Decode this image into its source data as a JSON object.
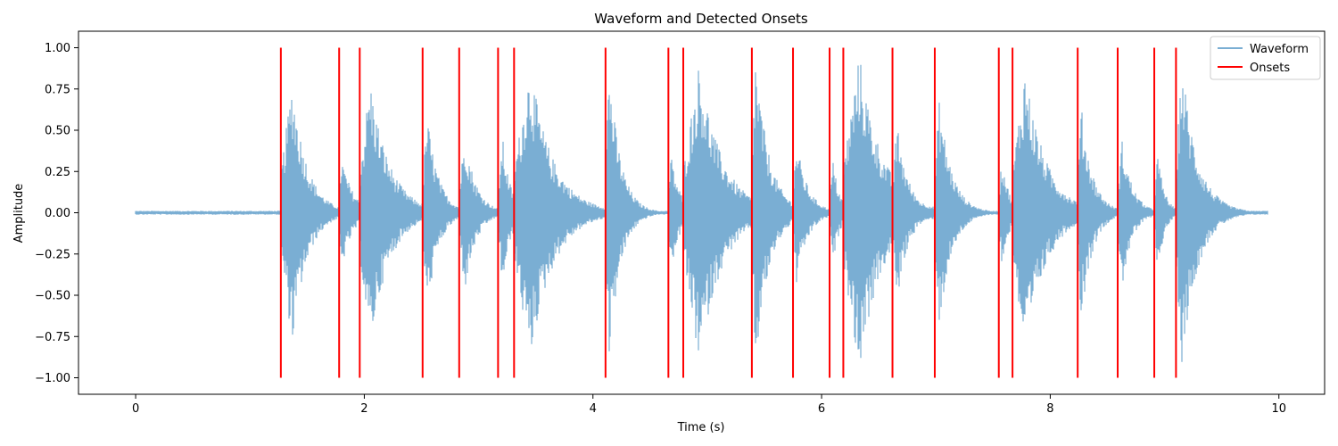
{
  "chart_data": {
    "type": "line",
    "title": "Waveform and Detected Onsets",
    "xlabel": "Time (s)",
    "ylabel": "Amplitude",
    "xlim": [
      -0.5,
      10.4
    ],
    "ylim": [
      -1.1,
      1.1
    ],
    "x_ticks": [
      0,
      2,
      4,
      6,
      8,
      10
    ],
    "x_tick_labels": [
      "0",
      "2",
      "4",
      "6",
      "8",
      "10"
    ],
    "y_ticks": [
      -1.0,
      -0.75,
      -0.5,
      -0.25,
      0.0,
      0.25,
      0.5,
      0.75,
      1.0
    ],
    "y_tick_labels": [
      "−1.00",
      "−0.75",
      "−0.50",
      "−0.25",
      "0.00",
      "0.25",
      "0.50",
      "0.75",
      "1.00"
    ],
    "grid": false,
    "legend_position": "top-right",
    "series": [
      {
        "name": "Waveform",
        "color": "#7aaed3",
        "duration": 9.9,
        "noise_amplitude": 0.012,
        "bursts": [
          {
            "start": 1.27,
            "peak_time": 1.37,
            "amplitude": 0.81,
            "decay": 0.13
          },
          {
            "start": 1.78,
            "peak_time": 1.8,
            "amplitude": 0.35,
            "decay": 0.1
          },
          {
            "start": 1.96,
            "peak_time": 2.05,
            "amplitude": 0.82,
            "decay": 0.17
          },
          {
            "start": 2.51,
            "peak_time": 2.55,
            "amplitude": 0.6,
            "decay": 0.1
          },
          {
            "start": 2.83,
            "peak_time": 2.88,
            "amplitude": 0.48,
            "decay": 0.1
          },
          {
            "start": 3.17,
            "peak_time": 3.21,
            "amplitude": 0.46,
            "decay": 0.07
          },
          {
            "start": 3.31,
            "peak_time": 3.45,
            "amplitude": 0.9,
            "decay": 0.2
          },
          {
            "start": 4.11,
            "peak_time": 4.14,
            "amplitude": 0.92,
            "decay": 0.1
          },
          {
            "start": 4.66,
            "peak_time": 4.68,
            "amplitude": 0.37,
            "decay": 0.08
          },
          {
            "start": 4.79,
            "peak_time": 4.93,
            "amplitude": 0.92,
            "decay": 0.2
          },
          {
            "start": 5.39,
            "peak_time": 5.42,
            "amplitude": 0.97,
            "decay": 0.12
          },
          {
            "start": 5.75,
            "peak_time": 5.78,
            "amplitude": 0.44,
            "decay": 0.1
          },
          {
            "start": 6.07,
            "peak_time": 6.1,
            "amplitude": 0.32,
            "decay": 0.06
          },
          {
            "start": 6.19,
            "peak_time": 6.33,
            "amplitude": 0.97,
            "decay": 0.2
          },
          {
            "start": 6.62,
            "peak_time": 6.66,
            "amplitude": 0.55,
            "decay": 0.1
          },
          {
            "start": 6.99,
            "peak_time": 7.03,
            "amplitude": 0.7,
            "decay": 0.11
          },
          {
            "start": 7.55,
            "peak_time": 7.58,
            "amplitude": 0.35,
            "decay": 0.06
          },
          {
            "start": 7.67,
            "peak_time": 7.78,
            "amplitude": 0.89,
            "decay": 0.18
          },
          {
            "start": 8.24,
            "peak_time": 8.27,
            "amplitude": 0.66,
            "decay": 0.1
          },
          {
            "start": 8.59,
            "peak_time": 8.63,
            "amplitude": 0.45,
            "decay": 0.09
          },
          {
            "start": 8.91,
            "peak_time": 8.94,
            "amplitude": 0.37,
            "decay": 0.06
          },
          {
            "start": 9.1,
            "peak_time": 9.15,
            "amplitude": 0.93,
            "decay": 0.14
          }
        ]
      },
      {
        "name": "Onsets",
        "color": "#ff0000",
        "type": "vlines",
        "ymin": -1.0,
        "ymax": 1.0,
        "x": [
          1.27,
          1.78,
          1.96,
          2.51,
          2.83,
          3.17,
          3.31,
          4.11,
          4.66,
          4.79,
          5.39,
          5.75,
          6.07,
          6.19,
          6.62,
          6.99,
          7.55,
          7.67,
          8.24,
          8.59,
          8.91,
          9.1
        ]
      }
    ]
  }
}
